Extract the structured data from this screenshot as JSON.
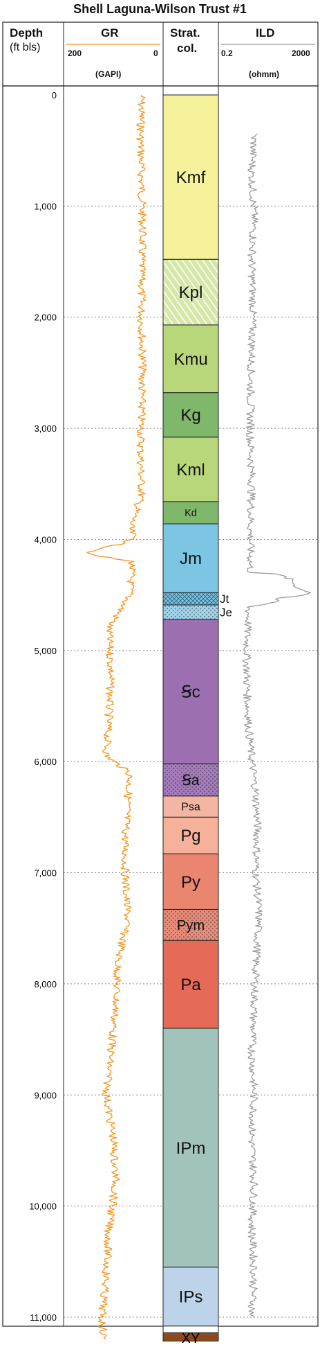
{
  "title": "Shell Laguna-Wilson Trust #1",
  "headers": {
    "depth_label": "Depth",
    "depth_unit": "(ft bls)",
    "gr_label": "GR",
    "gr_min": "200",
    "gr_max": "0",
    "gr_unit": "(GAPI)",
    "strat_label1": "Strat.",
    "strat_label2": "col.",
    "ild_label": "ILD",
    "ild_min": "0.2",
    "ild_max": "2000",
    "ild_unit": "(ohmm)"
  },
  "colors": {
    "gr_curve": "#f7941d",
    "ild_curve": "#9b9b9b",
    "gridline": "#888888",
    "frame": "#222222",
    "basement": "#8b4a1c"
  },
  "chart_data": {
    "type": "line",
    "y_axis": {
      "label": "Depth (ft bls)",
      "reversed": true,
      "ylim": [
        0,
        11200
      ],
      "ticks": [
        "0",
        "1,000",
        "2,000",
        "3,000",
        "4,000",
        "5,000",
        "6,000",
        "7,000",
        "8,000",
        "9,000",
        "10,000",
        "11,000"
      ],
      "tick_values": [
        0,
        1000,
        2000,
        3000,
        4000,
        5000,
        6000,
        7000,
        8000,
        9000,
        10000,
        11000
      ]
    },
    "grid": true,
    "gr_track": {
      "xlim": [
        200,
        0
      ],
      "unit": "GAPI"
    },
    "ild_track": {
      "xlim": [
        0.2,
        2000
      ],
      "scale": "log",
      "unit": "ohmm"
    },
    "series": [
      {
        "name": "GR",
        "track": "gr",
        "depth": [
          0,
          400,
          800,
          1200,
          1600,
          2000,
          2400,
          2800,
          3200,
          3600,
          3900,
          4000,
          4130,
          4200,
          4500,
          4800,
          5200,
          5600,
          5950,
          6100,
          6400,
          6700,
          7000,
          7400,
          7800,
          8200,
          8600,
          9000,
          9400,
          9800,
          10200,
          10600,
          11000,
          11200
        ],
        "values": [
          40,
          42,
          40,
          38,
          40,
          40,
          38,
          40,
          42,
          40,
          65,
          55,
          160,
          60,
          65,
          110,
          105,
          110,
          115,
          65,
          70,
          75,
          75,
          70,
          90,
          95,
          105,
          115,
          100,
          95,
          110,
          115,
          125,
          120
        ]
      },
      {
        "name": "ILD",
        "track": "ild",
        "depth": [
          350,
          700,
          1100,
          1500,
          1900,
          2300,
          2700,
          3100,
          3500,
          3900,
          4300,
          4450,
          4480,
          4520,
          4600,
          4900,
          5300,
          5700,
          6000,
          6300,
          6600,
          7000,
          7400,
          7800,
          8200,
          8600,
          9000,
          9400,
          9800,
          10200,
          10600,
          11000
        ],
        "values": [
          5,
          4,
          5,
          4,
          4.5,
          4,
          3.5,
          3.5,
          4,
          3.5,
          3.5,
          400,
          1500,
          60,
          3,
          2.5,
          2.5,
          3,
          4,
          6,
          7,
          6,
          8,
          6,
          5,
          4,
          5,
          4,
          5,
          4,
          5,
          4
        ]
      }
    ],
    "strat_column": [
      {
        "label": "Kmf",
        "top": 0,
        "base": 1480,
        "color": "#f5f29b",
        "pattern": "none"
      },
      {
        "label": "Kpl",
        "top": 1480,
        "base": 2070,
        "color": "#d6e8a8",
        "pattern": "hatch"
      },
      {
        "label": "Kmu",
        "top": 2070,
        "base": 2680,
        "color": "#b8d67a",
        "pattern": "none"
      },
      {
        "label": "Kg",
        "top": 2680,
        "base": 3080,
        "color": "#7fb86a",
        "pattern": "none"
      },
      {
        "label": "Kml",
        "top": 3080,
        "base": 3660,
        "color": "#b8d67a",
        "pattern": "none"
      },
      {
        "label": "Kd",
        "top": 3660,
        "base": 3860,
        "color": "#7fb86a",
        "pattern": "none"
      },
      {
        "label": "Jm",
        "top": 3860,
        "base": 4480,
        "color": "#7cc6e3",
        "pattern": "none"
      },
      {
        "label": "Jt",
        "top": 4480,
        "base": 4590,
        "color": "#7cc6e3",
        "pattern": "crosshatch",
        "side_label": true
      },
      {
        "label": "Je",
        "top": 4590,
        "base": 4720,
        "color": "#9ed3ea",
        "pattern": "dots",
        "side_label": true
      },
      {
        "label": "Ꞩc",
        "top": 4720,
        "base": 6020,
        "color": "#9b6fb0",
        "pattern": "none"
      },
      {
        "label": "Ꞩa",
        "top": 6020,
        "base": 6310,
        "color": "#a67bbd",
        "pattern": "dots"
      },
      {
        "label": "Psa",
        "top": 6310,
        "base": 6500,
        "color": "#f3b6a3",
        "pattern": "none"
      },
      {
        "label": "Pg",
        "top": 6500,
        "base": 6830,
        "color": "#f6b19b",
        "pattern": "none"
      },
      {
        "label": "Py",
        "top": 6830,
        "base": 7330,
        "color": "#ea8570",
        "pattern": "none"
      },
      {
        "label": "Pym",
        "top": 7330,
        "base": 7610,
        "color": "#ec8c78",
        "pattern": "dots"
      },
      {
        "label": "Pa",
        "top": 7610,
        "base": 8400,
        "color": "#e56a57",
        "pattern": "none"
      },
      {
        "label": "IPm",
        "top": 8400,
        "base": 10550,
        "color": "#a1c3bb",
        "pattern": "none"
      },
      {
        "label": "IPs",
        "top": 10550,
        "base": 11080,
        "color": "#bcd3ea",
        "pattern": "none"
      },
      {
        "label": "",
        "top": 11080,
        "base": 11140,
        "color": "#ffffff",
        "pattern": "none"
      }
    ],
    "basement_label": "XY"
  }
}
